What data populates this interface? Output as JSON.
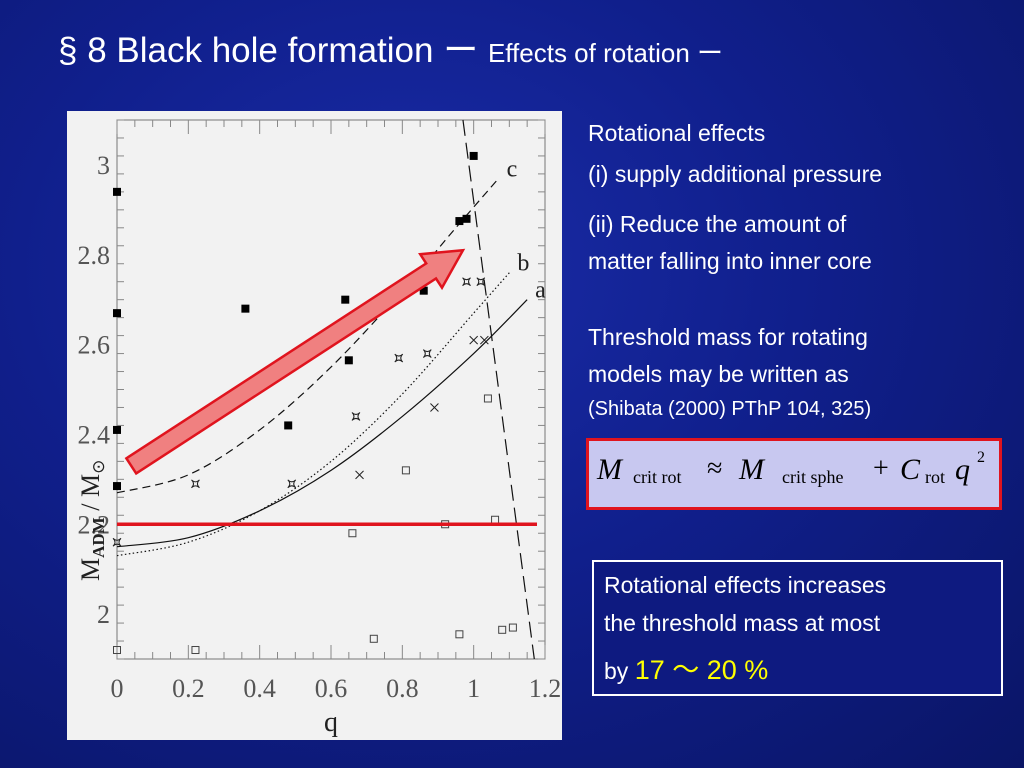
{
  "slide": {
    "title_main": "§ 8  Black hole formation ー ",
    "title_sub": "Effects of rotation ー"
  },
  "notes": {
    "heading": "Rotational effects",
    "point1": "(i) supply additional  pressure",
    "point2_line1": "(ii) Reduce the amount of",
    "point2_line2": "matter falling into inner core",
    "threshold_line1": "Threshold mass for rotating",
    "threshold_line2": "models may be written as",
    "reference": "(Shibata (2000) PThP 104, 325)"
  },
  "formula": {
    "m1": "M",
    "sub1": "crit rot",
    "approx": "≈",
    "m2": "M",
    "sub2": "crit sphe",
    "plus": "+",
    "c": "C",
    "sub3": "rot",
    "q": "q",
    "exp": "2"
  },
  "conclusion": {
    "line1": "Rotational effects increases",
    "line2": "the threshold mass at most",
    "line3_prefix": "by ",
    "line3_value": "17 ～ 20 %"
  },
  "chart_data": {
    "type": "scatter",
    "xlabel": "q",
    "ylabel_main": "M",
    "ylabel_sub": "ADM",
    "ylabel_mid": " / M",
    "ylabel_sun": "⊙",
    "xlim": [
      0,
      1.2
    ],
    "ylim": [
      1.9,
      3.1
    ],
    "x_ticks": [
      0,
      0.2,
      0.4,
      0.6,
      0.8,
      1,
      1.2
    ],
    "x_tick_labels": [
      "0",
      "0.2",
      "0.4",
      "0.6",
      "0.8",
      "1",
      "1.2"
    ],
    "y_ticks": [
      2,
      2.2,
      2.4,
      2.6,
      2.8,
      3
    ],
    "y_tick_labels": [
      "2",
      "2.2",
      "2.4",
      "2.6",
      "2.8",
      "3"
    ],
    "series": [
      {
        "marker": "filled-square",
        "x": [
          0,
          0,
          0,
          0,
          0.22,
          0.36,
          0.48,
          0.64,
          0.65,
          0.86,
          0.96,
          0.98,
          1.0
        ],
        "y": [
          2.94,
          2.67,
          2.41,
          2.285,
          2.41,
          2.68,
          2.42,
          2.7,
          2.565,
          2.72,
          2.875,
          2.88,
          3.02
        ]
      },
      {
        "marker": "open-square",
        "x": [
          0,
          0.22,
          0.66,
          0.72,
          0.81,
          0.92,
          0.96,
          1.04,
          1.06,
          1.08,
          1.11
        ],
        "y": [
          1.92,
          1.92,
          2.18,
          1.945,
          2.32,
          2.2,
          1.955,
          2.48,
          2.21,
          1.965,
          1.97
        ]
      },
      {
        "marker": "star",
        "x": [
          0,
          0.22,
          0.49,
          0.67,
          0.79,
          0.87,
          0.98,
          1.02
        ],
        "y": [
          2.16,
          2.29,
          2.29,
          2.44,
          2.57,
          2.58,
          2.74,
          2.74
        ]
      },
      {
        "marker": "cross",
        "x": [
          0.68,
          0.89,
          1.0,
          1.03
        ],
        "y": [
          2.31,
          2.46,
          2.61,
          2.61
        ]
      }
    ],
    "curve_labels": [
      "a",
      "b",
      "c"
    ],
    "curves": [
      {
        "label": "a",
        "style": "solid",
        "x": [
          0,
          0.2,
          0.4,
          0.6,
          0.8,
          1.0,
          1.15
        ],
        "y": [
          2.15,
          2.17,
          2.23,
          2.32,
          2.44,
          2.58,
          2.7
        ]
      },
      {
        "label": "b",
        "style": "dotted",
        "x": [
          0,
          0.2,
          0.4,
          0.6,
          0.8,
          1.0,
          1.1
        ],
        "y": [
          2.13,
          2.16,
          2.23,
          2.34,
          2.49,
          2.67,
          2.76
        ]
      },
      {
        "label": "c",
        "style": "dashed",
        "x": [
          0,
          0.2,
          0.4,
          0.6,
          0.8,
          0.95,
          1.07
        ],
        "y": [
          2.27,
          2.31,
          2.41,
          2.55,
          2.72,
          2.86,
          2.97
        ]
      },
      {
        "label": "",
        "style": "longdash",
        "x": [
          0.97,
          1.02,
          1.07,
          1.12,
          1.17
        ],
        "y": [
          3.1,
          2.8,
          2.5,
          2.2,
          1.9
        ]
      }
    ],
    "threshold_y": 2.2,
    "annotation_arrow": {
      "from": [
        0.04,
        2.33
      ],
      "to": [
        0.97,
        2.81
      ]
    }
  }
}
